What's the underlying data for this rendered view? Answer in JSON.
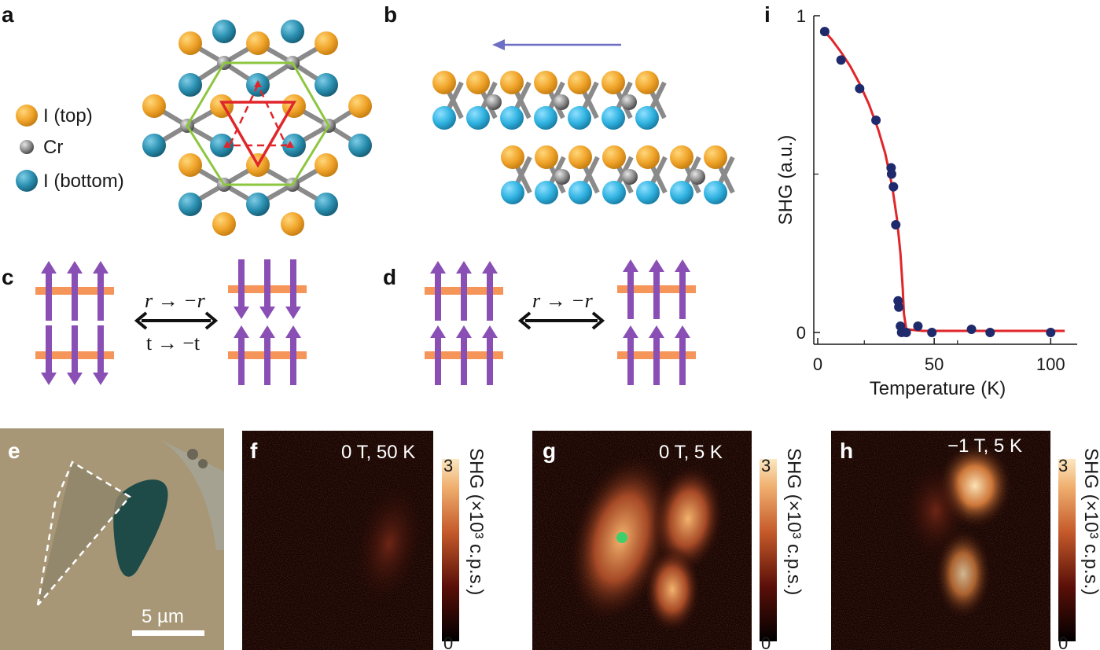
{
  "panels": {
    "a": {
      "label": "a",
      "legend": [
        {
          "text": "I (top)",
          "color": "#f0a42a"
        },
        {
          "text": "Cr",
          "color": "#8c8c8c"
        },
        {
          "text": "I (bottom)",
          "color": "#2a8fb0"
        }
      ]
    },
    "b": {
      "label": "b"
    },
    "c": {
      "label": "c",
      "op_top": "r → −r",
      "op_bottom": "t → −t"
    },
    "d": {
      "label": "d",
      "op_top": "r → −r"
    },
    "e": {
      "label": "e",
      "scale": "5 µm"
    },
    "f": {
      "label": "f",
      "condition": "0 T, 50 K",
      "cbar_max": "3",
      "cbar_min": "0",
      "cbar_label": "SHG (×10³ c.p.s.)"
    },
    "g": {
      "label": "g",
      "condition": "0 T, 5 K",
      "cbar_max": "3",
      "cbar_min": "0",
      "cbar_label": "SHG (×10³ c.p.s.)"
    },
    "h": {
      "label": "h",
      "condition": "−1 T, 5 K",
      "cbar_max": "3",
      "cbar_min": "0",
      "cbar_label": "SHG (×10³ c.p.s.)"
    },
    "i": {
      "label": "i"
    }
  },
  "colors": {
    "top_iodine": "#f0a42a",
    "cr": "#8c8c8c",
    "bottom_iodine": "#2a8fb0",
    "bottom_iodine_b": "#2fb2e0",
    "spin": "#8a4fb5",
    "layer": "#f5955a",
    "fit": "#e0262a",
    "data": "#1e2a6b",
    "arrow": "#6d6fc4"
  },
  "chart_data": {
    "type": "scatter",
    "xlabel": "Temperature (K)",
    "ylabel": "SHG (a.u.)",
    "xlim": [
      0,
      108
    ],
    "ylim": [
      -0.02,
      1.0
    ],
    "xticks": [
      "0",
      "50",
      "100"
    ],
    "yticks": [
      "0",
      "1"
    ],
    "series": [
      {
        "type": "scatter",
        "x": [
          3,
          10,
          18,
          25,
          31.5,
          31.7,
          32.5,
          33.5,
          34.5,
          34.8,
          35.5,
          36,
          38,
          43,
          49,
          66,
          74,
          100
        ],
        "y": [
          0.95,
          0.86,
          0.77,
          0.67,
          0.52,
          0.5,
          0.46,
          0.34,
          0.1,
          0.08,
          0.02,
          0.0,
          0.0,
          0.02,
          0.0,
          0.01,
          0.0,
          0.0
        ]
      },
      {
        "type": "line",
        "x": [
          3,
          6,
          10,
          14,
          18,
          22,
          26,
          29,
          32,
          34,
          35.5,
          36.5,
          37,
          38,
          45,
          60,
          80,
          100,
          106
        ],
        "y": [
          0.95,
          0.925,
          0.885,
          0.84,
          0.785,
          0.72,
          0.64,
          0.565,
          0.46,
          0.36,
          0.25,
          0.14,
          0.06,
          0.01,
          0.005,
          0.005,
          0.005,
          0.005,
          0.005
        ]
      }
    ]
  }
}
